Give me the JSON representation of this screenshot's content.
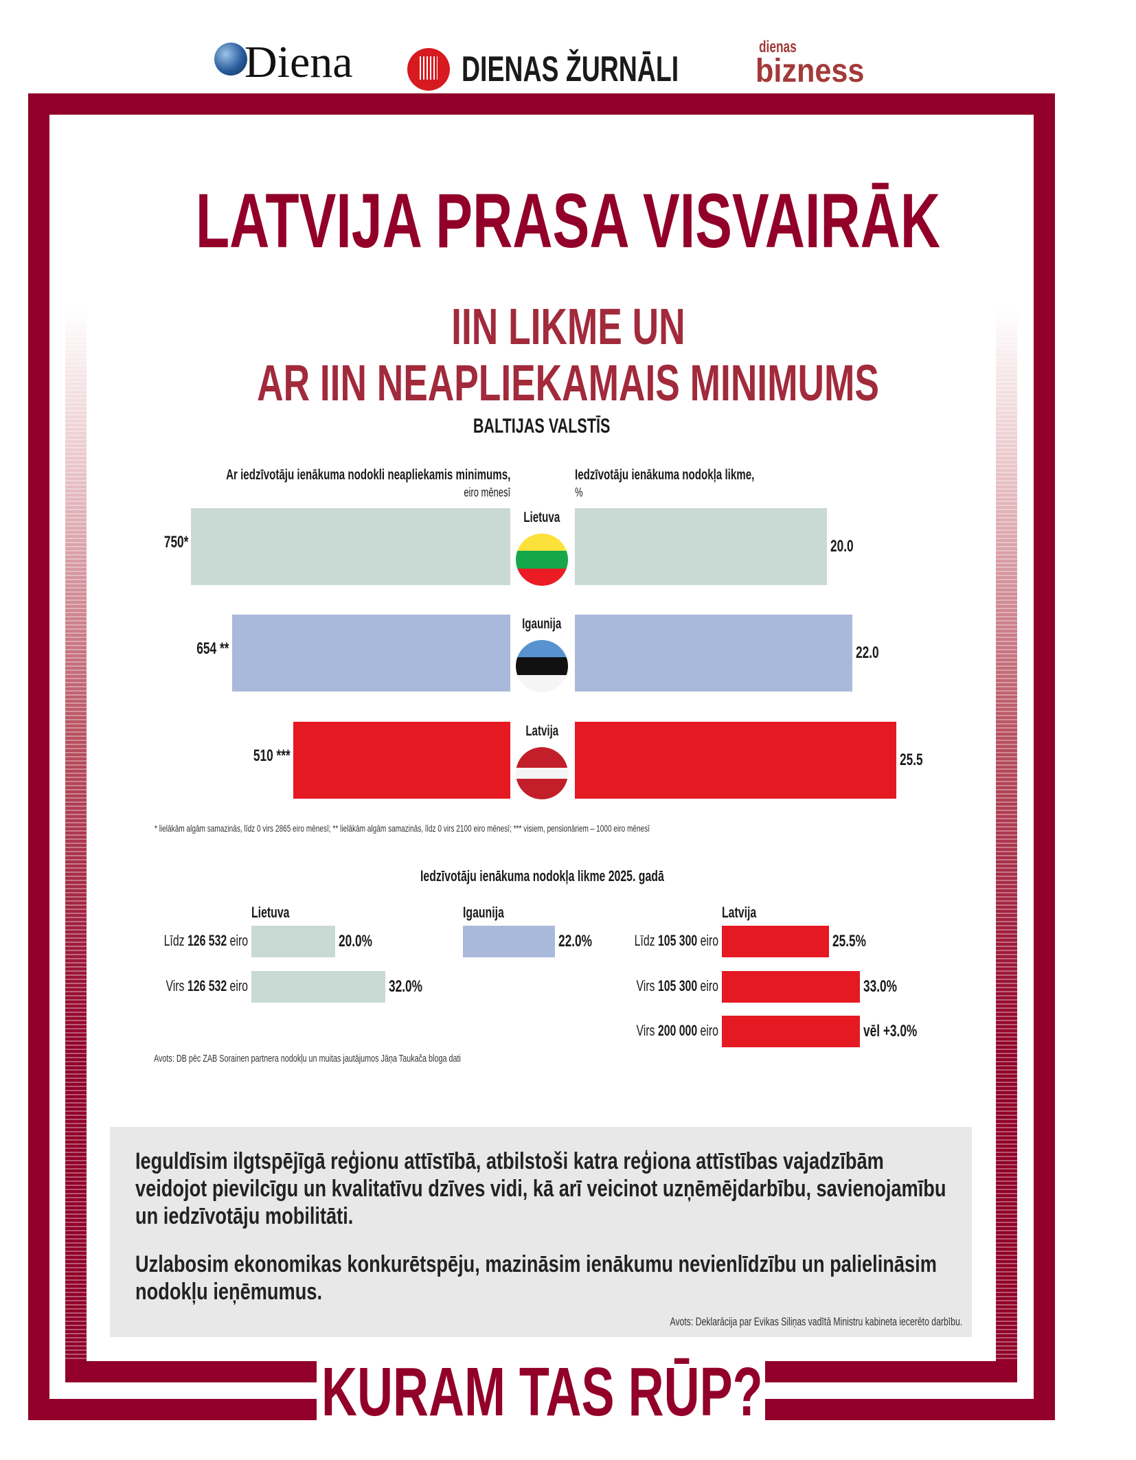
{
  "logos": {
    "diena": "Diena",
    "dienas_zurnali": "DIENAS ŽURNĀLI",
    "dienas_bizness_top": "dienas",
    "dienas_bizness_bottom": "bizness"
  },
  "title": "LATVIJA PRASA VISVAIRĀK",
  "subtitle_line1": "IIN LIKME UN",
  "subtitle_line2": "AR IIN NEAPLIEKAMAIS MINIMUMS",
  "subtitle_line3": "BALTIJAS VALSTĪS",
  "colors": {
    "brand": "#920029",
    "lietuva": "#c8dad3",
    "igaunija": "#a9b9db",
    "latvija": "#e41922"
  },
  "chart_data": {
    "type": "bar",
    "left_title": "Ar iedzīvotāju ienākuma nodokli neapliekamis minimums,",
    "left_unit": "eiro mēnesī",
    "right_title": "Iedzīvotāju ienākuma nodokļa likme,",
    "right_unit": "%",
    "categories": [
      "Lietuva",
      "Igaunija",
      "Latvija"
    ],
    "series": [
      {
        "name": "Neapliekamais minimums",
        "values": [
          750,
          654,
          510
        ],
        "labels": [
          "750*",
          "654 **",
          "510 ***"
        ]
      },
      {
        "name": "IIN likme",
        "values": [
          20.0,
          22.0,
          25.5
        ],
        "labels": [
          "20.0",
          "22.0",
          "25.5"
        ]
      }
    ],
    "footnote": "* lielākām algām samazinās, līdz 0 virs 2865 eiro mēnesī; ** lielākām algām samazinās, līdz 0 virs 2100 eiro mēnesī; *** visiem, pensionāriem – 1000 eiro mēnesī"
  },
  "chart2": {
    "title": "Iedzīvotāju ienākuma nodokļa likme 2025. gadā",
    "groups": [
      {
        "country": "Lietuva",
        "rows": [
          {
            "prefix": "Līdz",
            "amount": "126 532",
            "suffix": "eiro",
            "value": 20.0,
            "label": "20.0%"
          },
          {
            "prefix": "Virs",
            "amount": "126 532",
            "suffix": "eiro",
            "value": 32.0,
            "label": "32.0%"
          }
        ]
      },
      {
        "country": "Igaunija",
        "rows": [
          {
            "prefix": "",
            "amount": "",
            "suffix": "",
            "value": 22.0,
            "label": "22.0%"
          }
        ]
      },
      {
        "country": "Latvija",
        "rows": [
          {
            "prefix": "Līdz",
            "amount": "105 300",
            "suffix": "eiro",
            "value": 25.5,
            "label": "25.5%"
          },
          {
            "prefix": "Virs",
            "amount": "105 300",
            "suffix": "eiro",
            "value": 33.0,
            "label": "33.0%"
          },
          {
            "prefix": "Virs",
            "amount": "200 000",
            "suffix": "eiro",
            "value": 33.0,
            "label": "vēl +3.0%"
          }
        ]
      }
    ],
    "source": "Avots: DB pēc ZAB Sorainen partnera nodokļu un muitas jautājumos Jāņa Taukača bloga dati"
  },
  "box": {
    "p1": "Ieguldīsim ilgtspējīgā reģionu attīstībā, atbilstoši katra reģiona attīstības vajadzībām veidojot pievilcīgu un kvalitatīvu dzīves vidi, kā arī veicinot uzņēmējdarbību, savienojamību un iedzīvotāju mobilitāti.",
    "p2": "Uzlabosim ekonomikas konkurētspēju, mazināsim ienākumu nevienlīdzību un palielināsim nodokļu ieņēmumus.",
    "source": "Avots: Deklarācija par Evikas Siliņas vadītā Ministru kabineta iecerēto darbību."
  },
  "footer": "KURAM TAS RŪP?"
}
